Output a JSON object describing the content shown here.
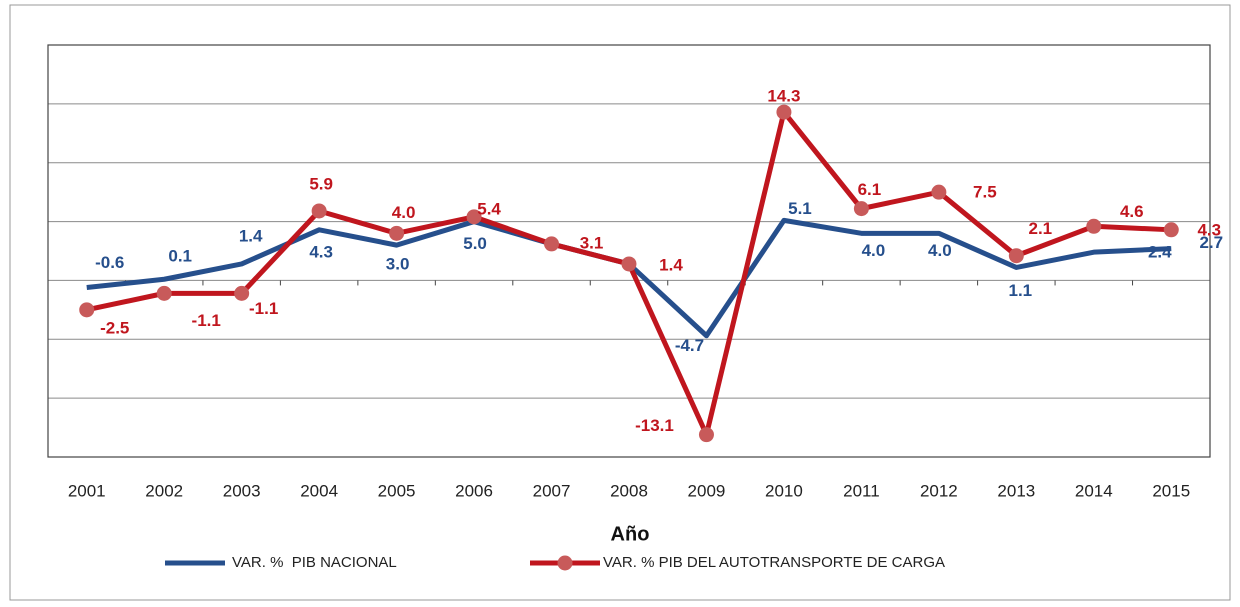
{
  "chart_data": {
    "type": "line",
    "x_label": "Año",
    "categories": [
      "2001",
      "2002",
      "2003",
      "2004",
      "2005",
      "2006",
      "2007",
      "2008",
      "2009",
      "2010",
      "2011",
      "2012",
      "2013",
      "2014",
      "2015"
    ],
    "series": [
      {
        "name": "VAR. %  PIB NACIONAL",
        "color": "#264f8c",
        "values": [
          -0.6,
          0.1,
          1.4,
          4.3,
          3.0,
          5.0,
          3.1,
          1.4,
          -4.7,
          5.1,
          4.0,
          4.0,
          1.1,
          2.4,
          2.7
        ],
        "value_labels": [
          "-0.6",
          "0.1",
          "1.4",
          "4.3",
          "3.0",
          "5.0",
          null,
          null,
          "-4.7",
          "5.1",
          "4.0",
          "4.0",
          "1.1",
          "2.4",
          "2.7"
        ]
      },
      {
        "name": "VAR. % PIB DEL AUTOTRANSPORTE DE CARGA",
        "color": "#c0161e",
        "marker": "circle",
        "values": [
          -2.5,
          -1.1,
          -1.1,
          5.9,
          4.0,
          5.4,
          3.1,
          1.4,
          -13.1,
          14.3,
          6.1,
          7.5,
          2.1,
          4.6,
          4.3
        ],
        "value_labels": [
          "-2.5",
          "-1.1",
          "-1.1",
          "5.9",
          "4.0",
          "5.4",
          "3.1",
          "1.4",
          "-13.1",
          "14.3",
          "6.1",
          "7.5",
          "2.1",
          "4.6",
          "4.3"
        ]
      }
    ],
    "ylim": [
      -15,
      20
    ],
    "yticks": [
      -15,
      -10,
      -5,
      0,
      5,
      10,
      15,
      20
    ],
    "grid": true,
    "legend": "bottom"
  }
}
